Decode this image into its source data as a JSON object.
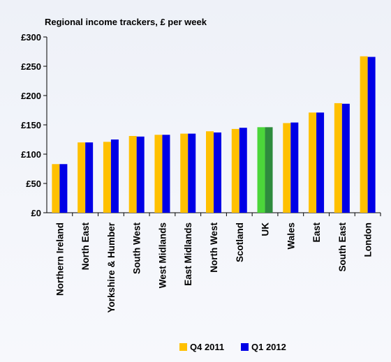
{
  "chart_data": {
    "type": "bar",
    "title": "Regional income trackers, £ per week",
    "xlabel": "",
    "ylabel": "",
    "ylim": [
      0,
      300
    ],
    "yticks": [
      0,
      50,
      100,
      150,
      200,
      250,
      300
    ],
    "ytick_labels": [
      "£0",
      "£50",
      "£100",
      "£150",
      "£200",
      "£250",
      "£300"
    ],
    "grid": false,
    "legend_position": "bottom-right",
    "categories": [
      "Northern Ireland",
      "North East",
      "Yorkshire & Humber",
      "South West",
      "West Midlands",
      "East Midlands",
      "North West",
      "Scotland",
      "UK",
      "Wales",
      "East",
      "South East",
      "London"
    ],
    "series": [
      {
        "name": "Q4 2011",
        "color": "#ffc000",
        "values": [
          83,
          120,
          121,
          131,
          133,
          135,
          139,
          143,
          146,
          153,
          171,
          187,
          267
        ],
        "highlight": {
          "UK": "#4cd63a"
        }
      },
      {
        "name": "Q1 2012",
        "color": "#0000e6",
        "values": [
          83,
          120,
          125,
          130,
          133,
          135,
          137,
          145,
          146,
          154,
          171,
          186,
          266
        ],
        "highlight": {
          "UK": "#2e8b3d"
        }
      }
    ]
  }
}
